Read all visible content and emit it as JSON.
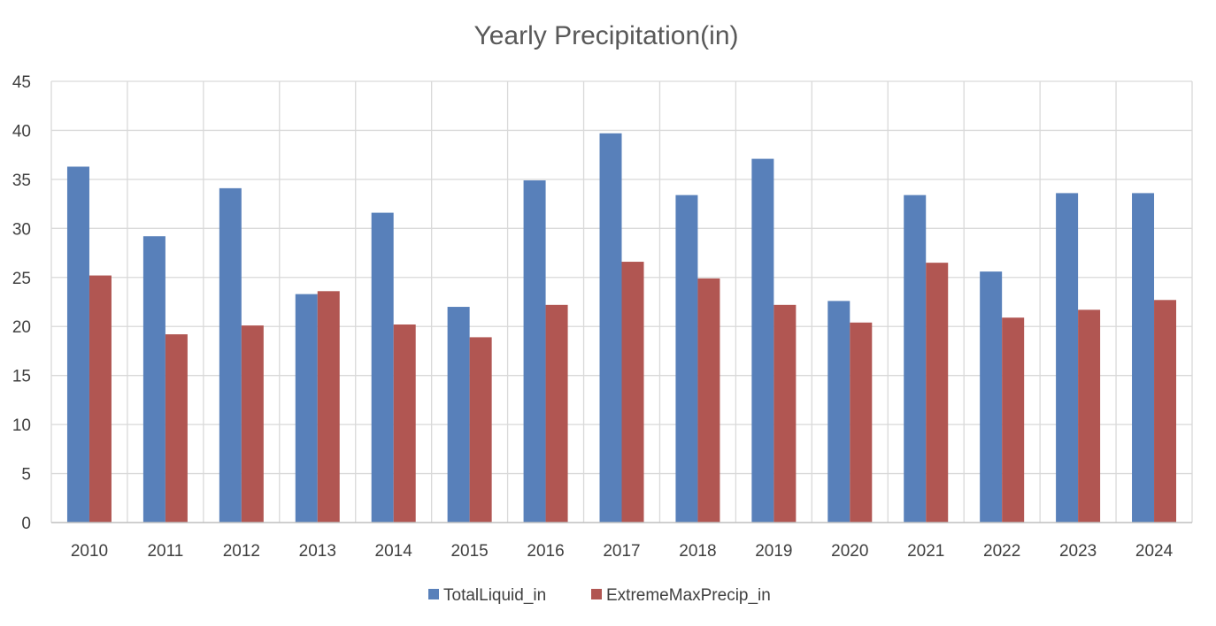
{
  "chart_data": {
    "type": "bar",
    "title": "Yearly Precipitation(in)",
    "xlabel": "",
    "ylabel": "",
    "categories": [
      "2010",
      "2011",
      "2012",
      "2013",
      "2014",
      "2015",
      "2016",
      "2017",
      "2018",
      "2019",
      "2020",
      "2021",
      "2022",
      "2023",
      "2024"
    ],
    "series": [
      {
        "name": "TotalLiquid_in",
        "color": "#5880BA",
        "values": [
          36.3,
          29.2,
          34.1,
          23.3,
          31.6,
          22.0,
          34.9,
          39.7,
          33.4,
          37.1,
          22.6,
          33.4,
          25.6,
          33.6,
          33.6
        ]
      },
      {
        "name": "ExtremeMaxPrecip_in",
        "color": "#B15652",
        "values": [
          25.2,
          19.2,
          20.1,
          23.6,
          20.2,
          18.9,
          22.2,
          26.6,
          24.9,
          22.2,
          20.4,
          26.5,
          20.9,
          21.7,
          22.7
        ]
      }
    ],
    "ylim": [
      0,
      45
    ],
    "yticks": [
      "0",
      "5",
      "10",
      "15",
      "20",
      "25",
      "30",
      "35",
      "40",
      "45"
    ],
    "grid": true,
    "legend_position": "bottom"
  }
}
